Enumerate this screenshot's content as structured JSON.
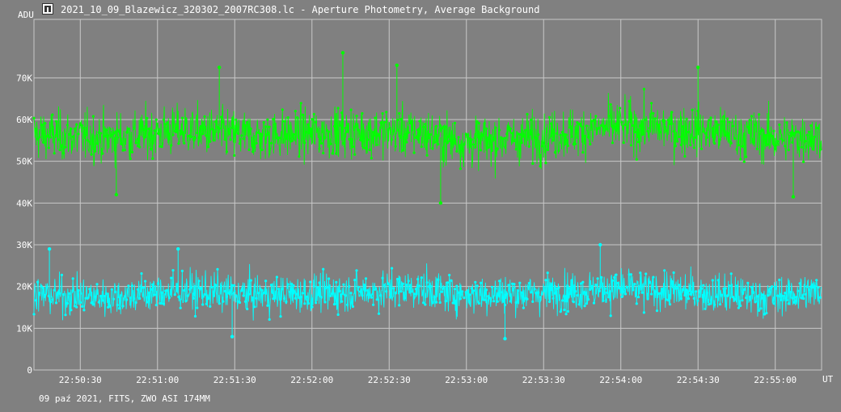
{
  "window": {
    "title": "2021_10_09_Blazewicz_320302_2007RC308.lc - Aperture Photometry, Average Background",
    "icon": "photometry-app-icon"
  },
  "footer": "09 paź 2021, FITS, ZWO ASI 174MM",
  "chart_data": {
    "type": "scatter",
    "ylabel": "ADU",
    "xunit": "UT",
    "x_ticks": [
      "22:50:30",
      "22:51:00",
      "22:51:30",
      "22:52:00",
      "22:52:30",
      "22:53:00",
      "22:53:30",
      "22:54:00",
      "22:54:30",
      "22:55:00"
    ],
    "y_ticks": [
      "0",
      "10K",
      "20K",
      "30K",
      "40K",
      "50K",
      "60K",
      "70K"
    ],
    "xlim": [
      "22:50:12",
      "22:55:18"
    ],
    "ylim": [
      0,
      84000
    ],
    "grid": true,
    "series": [
      {
        "color": "#00ff00",
        "mean_profile": [
          {
            "t": "22:50:12",
            "v": 56500
          },
          {
            "t": "22:50:40",
            "v": 55500
          },
          {
            "t": "22:51:10",
            "v": 57500
          },
          {
            "t": "22:51:40",
            "v": 56000
          },
          {
            "t": "22:52:10",
            "v": 57000
          },
          {
            "t": "22:52:40",
            "v": 57000
          },
          {
            "t": "22:53:00",
            "v": 54500
          },
          {
            "t": "22:53:30",
            "v": 56000
          },
          {
            "t": "22:54:00",
            "v": 58500
          },
          {
            "t": "22:54:30",
            "v": 57500
          },
          {
            "t": "22:55:00",
            "v": 55500
          },
          {
            "t": "22:55:18",
            "v": 56000
          }
        ],
        "typical_range": [
          48000,
          66000
        ],
        "extremes": [
          {
            "t": "22:52:12",
            "v": 76000
          },
          {
            "t": "22:52:33",
            "v": 73000
          },
          {
            "t": "22:51:24",
            "v": 72500
          },
          {
            "t": "22:54:30",
            "v": 72500
          },
          {
            "t": "22:52:50",
            "v": 40000
          },
          {
            "t": "22:55:07",
            "v": 41500
          },
          {
            "t": "22:50:44",
            "v": 42000
          }
        ]
      },
      {
        "color": "#00ffff",
        "mean_profile": [
          {
            "t": "22:50:12",
            "v": 18000
          },
          {
            "t": "22:50:40",
            "v": 17500
          },
          {
            "t": "22:51:10",
            "v": 19000
          },
          {
            "t": "22:51:40",
            "v": 18000
          },
          {
            "t": "22:52:10",
            "v": 18500
          },
          {
            "t": "22:52:40",
            "v": 19500
          },
          {
            "t": "22:53:00",
            "v": 18000
          },
          {
            "t": "22:53:30",
            "v": 18500
          },
          {
            "t": "22:54:00",
            "v": 19500
          },
          {
            "t": "22:54:30",
            "v": 18500
          },
          {
            "t": "22:55:00",
            "v": 17500
          },
          {
            "t": "22:55:18",
            "v": 19000
          }
        ],
        "typical_range": [
          11000,
          25000
        ],
        "extremes": [
          {
            "t": "22:53:52",
            "v": 30000
          },
          {
            "t": "22:50:18",
            "v": 29000
          },
          {
            "t": "22:51:08",
            "v": 29000
          },
          {
            "t": "22:53:15",
            "v": 7500
          },
          {
            "t": "22:51:29",
            "v": 8000
          }
        ]
      }
    ]
  }
}
